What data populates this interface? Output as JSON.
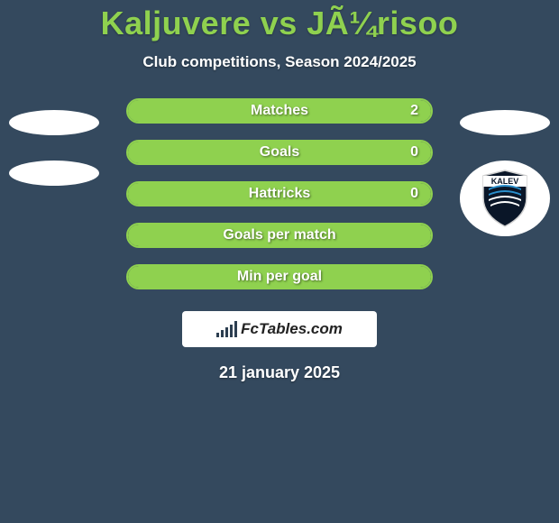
{
  "colors": {
    "background": "#34495e",
    "accent": "#8fd14f",
    "text": "#ffffff",
    "brand_box_bg": "#ffffff",
    "brand_text": "#222222",
    "shield_fill": "#0a1628",
    "shield_band": "#ffffff"
  },
  "header": {
    "title": "Kaljuvere vs JÃ¼risoo",
    "subtitle": "Club competitions, Season 2024/2025"
  },
  "stats": [
    {
      "label": "Matches",
      "value": "2",
      "fill_left_pct": 0,
      "fill_right_pct": 100,
      "full": false
    },
    {
      "label": "Goals",
      "value": "0",
      "fill_left_pct": 0,
      "fill_right_pct": 100,
      "full": false
    },
    {
      "label": "Hattricks",
      "value": "0",
      "fill_left_pct": 0,
      "fill_right_pct": 100,
      "full": false
    },
    {
      "label": "Goals per match",
      "value": "",
      "fill_left_pct": 0,
      "fill_right_pct": 0,
      "full": true
    },
    {
      "label": "Min per goal",
      "value": "",
      "fill_left_pct": 0,
      "fill_right_pct": 0,
      "full": true
    }
  ],
  "brand": {
    "name": "FcTables.com"
  },
  "date_line": "21 january 2025",
  "badge": {
    "club_name": "KALEV"
  }
}
